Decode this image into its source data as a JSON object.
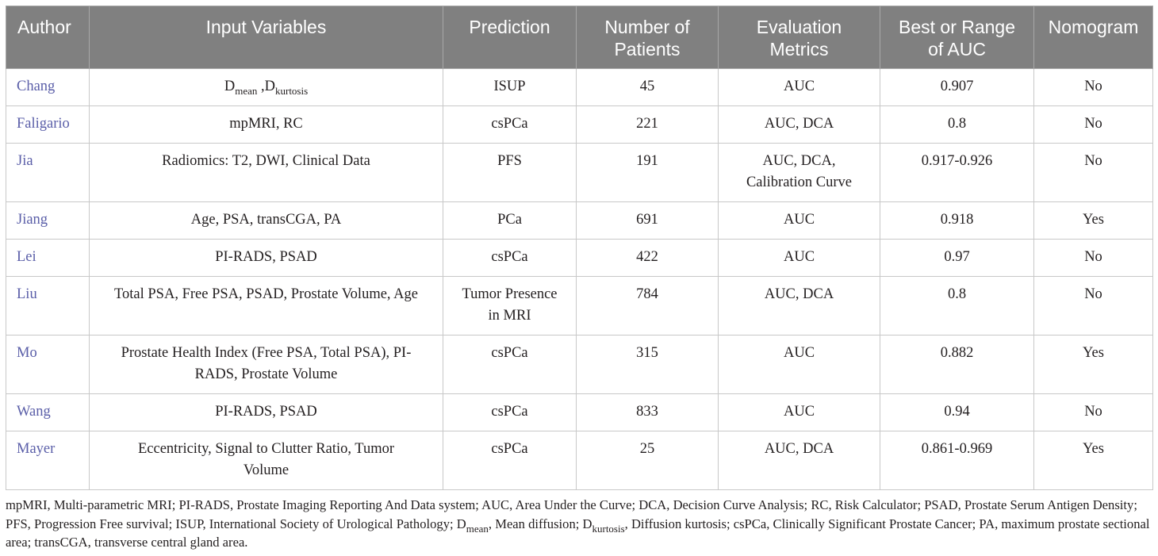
{
  "table": {
    "headers": {
      "author": "Author",
      "input_variables": "Input Variables",
      "prediction": "Prediction",
      "patients_line1": "Number of",
      "patients_line2": "Patients",
      "metrics_line1": "Evaluation",
      "metrics_line2": "Metrics",
      "auc_line1": "Best or Range",
      "auc_line2": "of AUC",
      "nomogram": "Nomogram"
    },
    "rows": [
      {
        "author": "Chang",
        "input_d1": "D",
        "input_d1_sub": "mean",
        "input_sep": " ,",
        "input_d2": "D",
        "input_d2_sub": "kurtosis",
        "prediction": [
          "ISUP"
        ],
        "patients": "45",
        "metrics": [
          "AUC"
        ],
        "auc": "0.907",
        "nomogram": "No"
      },
      {
        "author": "Faligario",
        "input": [
          "mpMRI, RC"
        ],
        "prediction": [
          "csPCa"
        ],
        "patients": "221",
        "metrics": [
          "AUC, DCA"
        ],
        "auc": "0.8",
        "nomogram": "No"
      },
      {
        "author": "Jia",
        "input": [
          "Radiomics: T2, DWI, Clinical Data"
        ],
        "prediction": [
          "PFS"
        ],
        "patients": "191",
        "metrics": [
          "AUC, DCA,",
          "Calibration Curve"
        ],
        "auc": "0.917-0.926",
        "nomogram": "No"
      },
      {
        "author": "Jiang",
        "input": [
          "Age, PSA, transCGA, PA"
        ],
        "prediction": [
          "PCa"
        ],
        "patients": "691",
        "metrics": [
          "AUC"
        ],
        "auc": "0.918",
        "nomogram": "Yes"
      },
      {
        "author": "Lei",
        "input": [
          "PI-RADS, PSAD"
        ],
        "prediction": [
          "csPCa"
        ],
        "patients": "422",
        "metrics": [
          "AUC"
        ],
        "auc": "0.97",
        "nomogram": "No"
      },
      {
        "author": "Liu",
        "input": [
          "Total PSA, Free PSA, PSAD, Prostate Volume, Age"
        ],
        "prediction": [
          "Tumor Presence",
          "in MRI"
        ],
        "patients": "784",
        "metrics": [
          "AUC, DCA"
        ],
        "auc": "0.8",
        "nomogram": "No"
      },
      {
        "author": "Mo",
        "input": [
          "Prostate Health Index (Free PSA, Total PSA), PI-",
          "RADS, Prostate Volume"
        ],
        "prediction": [
          "csPCa"
        ],
        "patients": "315",
        "metrics": [
          "AUC"
        ],
        "auc": "0.882",
        "nomogram": "Yes"
      },
      {
        "author": "Wang",
        "input": [
          "PI-RADS, PSAD"
        ],
        "prediction": [
          "csPCa"
        ],
        "patients": "833",
        "metrics": [
          "AUC"
        ],
        "auc": "0.94",
        "nomogram": "No"
      },
      {
        "author": "Mayer",
        "input": [
          "Eccentricity, Signal to Clutter Ratio, Tumor",
          "Volume"
        ],
        "prediction": [
          "csPCa"
        ],
        "patients": "25",
        "metrics": [
          "AUC, DCA"
        ],
        "auc": "0.861-0.969",
        "nomogram": "Yes"
      }
    ]
  },
  "footnote": {
    "text_1": "mpMRI, Multi-parametric MRI; PI-RADS, Prostate Imaging Reporting And Data system; AUC, Area Under the Curve; DCA, Decision Curve Analysis; RC, Risk Calculator; PSAD, Prostate Serum Antigen Density; PFS, Progression Free survival; ISUP, International Society of Urological Pathology; D",
    "sub_1": "mean",
    "text_2": ", Mean diffusion; D",
    "sub_2": "kurtosis",
    "text_3": ", Diffusion kurtosis; csPCa, Clinically Significant Prostate Cancer; PA, maximum prostate sectional area; transCGA, transverse central gland area."
  },
  "colors": {
    "header_bg": "#808080",
    "header_text": "#ffffff",
    "author_link": "#5a5ea8",
    "grid_line": "#c8c8c8",
    "body_text": "#231f20"
  }
}
